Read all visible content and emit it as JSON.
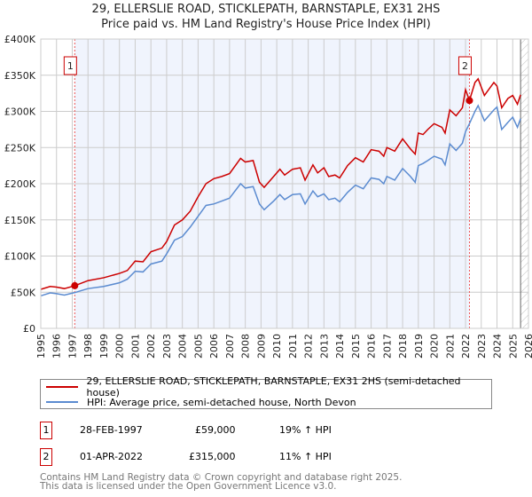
{
  "chart_data": {
    "type": "line",
    "title": "29, ELLERSLIE ROAD, STICKLEPATH, BARNSTAPLE, EX31 2HS",
    "subtitle": "Price paid vs. HM Land Registry's House Price Index (HPI)",
    "xlim": [
      1995,
      2026
    ],
    "ylim": [
      0,
      400000
    ],
    "y_ticks": [
      {
        "v": 0,
        "label": "£0"
      },
      {
        "v": 50000,
        "label": "£50K"
      },
      {
        "v": 100000,
        "label": "£100K"
      },
      {
        "v": 150000,
        "label": "£150K"
      },
      {
        "v": 200000,
        "label": "£200K"
      },
      {
        "v": 250000,
        "label": "£250K"
      },
      {
        "v": 300000,
        "label": "£300K"
      },
      {
        "v": 350000,
        "label": "£350K"
      },
      {
        "v": 400000,
        "label": "£400K"
      }
    ],
    "x_ticks": [
      "1995",
      "1996",
      "1997",
      "1998",
      "1999",
      "2000",
      "2001",
      "2002",
      "2003",
      "2004",
      "2005",
      "2006",
      "2007",
      "2008",
      "2009",
      "2010",
      "2011",
      "2012",
      "2013",
      "2014",
      "2015",
      "2016",
      "2017",
      "2018",
      "2019",
      "2020",
      "2021",
      "2022",
      "2023",
      "2024",
      "2025",
      "2026"
    ],
    "grid": true,
    "shaded_range": [
      1997.16,
      2022.25
    ],
    "hatched_from": 2025.5,
    "series": [
      {
        "name": "29, ELLERSLIE ROAD, STICKLEPATH, BARNSTAPLE, EX31 2HS (semi-detached house)",
        "color": "#cc0000",
        "x": [
          1995,
          1995.6,
          1996,
          1996.5,
          1997.16,
          1998,
          1999,
          2000,
          2000.5,
          2001,
          2001.5,
          2002,
          2002.7,
          2003,
          2003.5,
          2004,
          2004.5,
          2005,
          2005.5,
          2006,
          2006.5,
          2007,
          2007.7,
          2008,
          2008.5,
          2008.9,
          2009.2,
          2009.8,
          2010.2,
          2010.5,
          2011,
          2011.5,
          2011.8,
          2012.3,
          2012.6,
          2013,
          2013.3,
          2013.7,
          2014,
          2014.5,
          2015,
          2015.5,
          2016,
          2016.5,
          2016.8,
          2017,
          2017.5,
          2018,
          2018.5,
          2018.8,
          2019,
          2019.3,
          2019.6,
          2020,
          2020.5,
          2020.7,
          2021,
          2021.4,
          2021.8,
          2022,
          2022.25,
          2022.6,
          2022.8,
          2023.2,
          2023.8,
          2024,
          2024.3,
          2024.7,
          2025,
          2025.3,
          2025.5
        ],
        "y": [
          54000,
          58000,
          57000,
          55000,
          59000,
          66000,
          70000,
          76000,
          80000,
          93000,
          92000,
          106000,
          111000,
          120000,
          143000,
          150000,
          162000,
          182000,
          200000,
          207000,
          210000,
          214000,
          235000,
          230000,
          232000,
          202000,
          195000,
          210000,
          220000,
          212000,
          220000,
          222000,
          205000,
          226000,
          215000,
          222000,
          210000,
          212000,
          208000,
          225000,
          236000,
          230000,
          247000,
          245000,
          238000,
          250000,
          245000,
          262000,
          248000,
          241000,
          270000,
          268000,
          275000,
          283000,
          278000,
          270000,
          302000,
          294000,
          305000,
          330000,
          315000,
          340000,
          345000,
          322000,
          340000,
          335000,
          305000,
          318000,
          322000,
          310000,
          323000
        ]
      },
      {
        "name": "HPI: Average price, semi-detached house, North Devon",
        "color": "#5b8bd0",
        "x": [
          1995,
          1995.6,
          1996,
          1996.5,
          1997.16,
          1998,
          1999,
          2000,
          2000.5,
          2001,
          2001.5,
          2002,
          2002.7,
          2003,
          2003.5,
          2004,
          2004.5,
          2005,
          2005.5,
          2006,
          2006.5,
          2007,
          2007.7,
          2008,
          2008.5,
          2008.9,
          2009.2,
          2009.8,
          2010.2,
          2010.5,
          2011,
          2011.5,
          2011.8,
          2012.3,
          2012.6,
          2013,
          2013.3,
          2013.7,
          2014,
          2014.5,
          2015,
          2015.5,
          2016,
          2016.5,
          2016.8,
          2017,
          2017.5,
          2018,
          2018.5,
          2018.8,
          2019,
          2019.3,
          2019.6,
          2020,
          2020.5,
          2020.7,
          2021,
          2021.4,
          2021.8,
          2022,
          2022.25,
          2022.6,
          2022.8,
          2023.2,
          2023.8,
          2024,
          2024.3,
          2024.7,
          2025,
          2025.3,
          2025.5
        ],
        "y": [
          45000,
          49000,
          48000,
          46000,
          49500,
          55000,
          58000,
          63000,
          68000,
          79000,
          78000,
          89000,
          93000,
          103000,
          122000,
          127000,
          140000,
          155000,
          170000,
          172000,
          176000,
          180000,
          200000,
          194000,
          196000,
          172000,
          164000,
          176000,
          185000,
          178000,
          185000,
          186000,
          172000,
          190000,
          182000,
          186000,
          178000,
          180000,
          175000,
          188000,
          198000,
          193000,
          208000,
          206000,
          200000,
          210000,
          205000,
          221000,
          210000,
          202000,
          225000,
          228000,
          232000,
          238000,
          234000,
          226000,
          255000,
          246000,
          256000,
          272000,
          283000,
          300000,
          308000,
          287000,
          302000,
          306000,
          275000,
          285000,
          292000,
          278000,
          290000
        ]
      }
    ],
    "markers": [
      {
        "label": "1",
        "x": 1997.16,
        "y": 59000
      },
      {
        "label": "2",
        "x": 2022.25,
        "y": 315000
      }
    ]
  },
  "legend": {
    "red": "29, ELLERSLIE ROAD, STICKLEPATH, BARNSTAPLE, EX31 2HS (semi-detached house)",
    "blue": "HPI: Average price, semi-detached house, North Devon"
  },
  "transactions": [
    {
      "num": "1",
      "date": "28-FEB-1997",
      "price": "£59,000",
      "hpi": "19% ↑ HPI"
    },
    {
      "num": "2",
      "date": "01-APR-2022",
      "price": "£315,000",
      "hpi": "11% ↑ HPI"
    }
  ],
  "footer": {
    "line1": "Contains HM Land Registry data © Crown copyright and database right 2025.",
    "line2": "This data is licensed under the Open Government Licence v3.0."
  }
}
